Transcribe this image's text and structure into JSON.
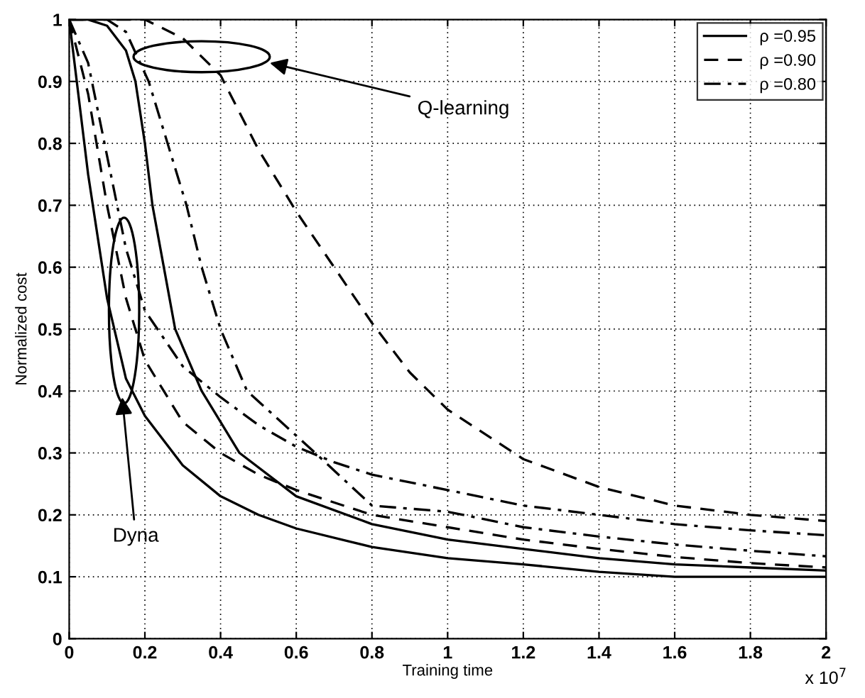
{
  "chart_data": {
    "type": "line",
    "xlabel": "Training time",
    "ylabel": "Normalized cost",
    "xlim": [
      0,
      2
    ],
    "ylim": [
      0,
      1
    ],
    "xticks": [
      0,
      0.2,
      0.4,
      0.6,
      0.8,
      1,
      1.2,
      1.4,
      1.6,
      1.8,
      2
    ],
    "yticks": [
      0,
      0.1,
      0.2,
      0.3,
      0.4,
      0.5,
      0.6,
      0.7,
      0.8,
      0.9,
      1
    ],
    "grid": true,
    "legend": "top right",
    "marker": "none",
    "annotations": [
      "Q-learning",
      "Dyna",
      "x 10$^{7}$"
    ],
    "series": [
      {
        "name": "ρ =0.95",
        "color": "#000000",
        "line_style": "solid",
        "x": [
          0,
          0.02,
          0.05,
          0.1,
          0.15,
          0.2,
          0.3,
          0.4,
          0.5,
          0.6,
          0.8,
          1,
          1.2,
          1.4,
          1.6,
          1.8,
          2
        ],
        "values": [
          1,
          0.9,
          0.75,
          0.55,
          0.42,
          0.36,
          0.28,
          0.23,
          0.2,
          0.178,
          0.148,
          0.13,
          0.12,
          0.108,
          0.1,
          0.1,
          0.1
        ]
      },
      {
        "name": "ρ =0.90",
        "color": "#000000",
        "line_style": "dashed",
        "x": [
          0,
          0.05,
          0.1,
          0.15,
          0.2,
          0.3,
          0.4,
          0.5,
          0.6,
          0.8,
          1,
          1.2,
          1.4,
          1.6,
          1.8,
          2
        ],
        "values": [
          1,
          0.88,
          0.7,
          0.55,
          0.45,
          0.35,
          0.3,
          0.265,
          0.24,
          0.2,
          0.18,
          0.16,
          0.145,
          0.132,
          0.122,
          0.115
        ]
      },
      {
        "name": "ρ =0.80",
        "color": "#000000",
        "line_style": "dashdot",
        "x": [
          0,
          0.05,
          0.1,
          0.15,
          0.2,
          0.3,
          0.4,
          0.5,
          0.6,
          0.7,
          0.8,
          1,
          1.2,
          1.4,
          1.6,
          1.8,
          2
        ],
        "values": [
          1,
          0.93,
          0.78,
          0.63,
          0.53,
          0.44,
          0.39,
          0.345,
          0.31,
          0.285,
          0.265,
          0.24,
          0.215,
          0.2,
          0.185,
          0.175,
          0.167
        ]
      },
      {
        "color": "#000000",
        "line_style": "solid",
        "x": [
          0,
          0.05,
          0.1,
          0.15,
          0.175,
          0.2,
          0.22,
          0.25,
          0.28,
          0.35,
          0.45,
          0.6,
          0.8,
          1,
          1.2,
          1.4,
          1.6,
          1.8,
          2
        ],
        "values": [
          1,
          1,
          0.99,
          0.95,
          0.9,
          0.8,
          0.7,
          0.6,
          0.5,
          0.4,
          0.3,
          0.23,
          0.185,
          0.16,
          0.145,
          0.13,
          0.12,
          0.115,
          0.11
        ]
      },
      {
        "color": "#000000",
        "line_style": "dashed",
        "x": [
          0,
          0.2,
          0.3,
          0.4,
          0.5,
          0.6,
          0.7,
          0.8,
          0.9,
          1,
          1.2,
          1.4,
          1.6,
          1.8,
          2
        ],
        "values": [
          1,
          1,
          0.97,
          0.91,
          0.79,
          0.69,
          0.6,
          0.51,
          0.43,
          0.37,
          0.29,
          0.245,
          0.215,
          0.2,
          0.19
        ]
      },
      {
        "color": "#000000",
        "line_style": "dashdot",
        "x": [
          0,
          0.1,
          0.15,
          0.21,
          0.26,
          0.31,
          0.35,
          0.4,
          0.47,
          0.65,
          0.8,
          1,
          1.2,
          1.4,
          1.6,
          1.8,
          2
        ],
        "values": [
          1,
          1,
          0.98,
          0.9,
          0.8,
          0.7,
          0.6,
          0.5,
          0.4,
          0.3,
          0.215,
          0.205,
          0.18,
          0.165,
          0.152,
          0.142,
          0.133
        ]
      }
    ]
  }
}
